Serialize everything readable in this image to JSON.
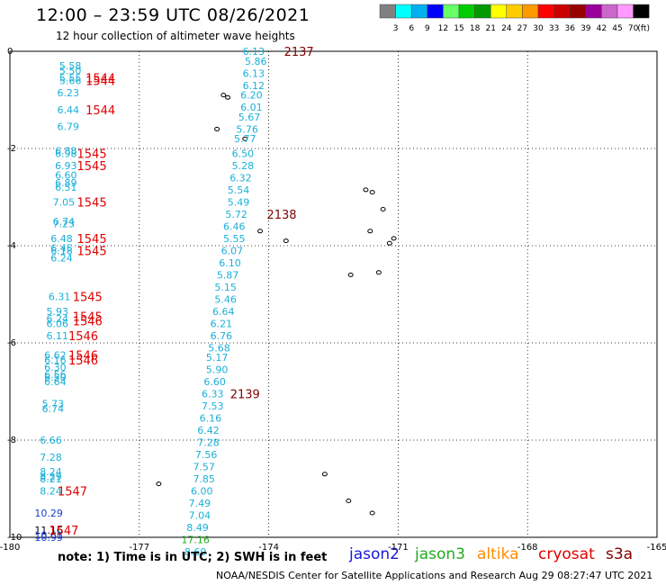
{
  "header": {
    "title": "12:00 – 23:59 UTC 08/26/2021",
    "subtitle": "12 hour collection of altimeter wave heights"
  },
  "legend": {
    "colors": [
      "#808080",
      "#00ffff",
      "#00b0f0",
      "#0000ff",
      "#66ff66",
      "#00cc00",
      "#009900",
      "#ffff00",
      "#ffcc00",
      "#ff9900",
      "#ff0000",
      "#cc0000",
      "#990000",
      "#990099",
      "#cc66cc",
      "#ff99ff",
      "#000000"
    ],
    "labels": [
      "3",
      "6",
      "9",
      "12",
      "15",
      "18",
      "21",
      "24",
      "27",
      "30",
      "33",
      "36",
      "39",
      "42",
      "45",
      "70",
      "(ft)"
    ]
  },
  "axes": {
    "x_labels": [
      "-180",
      "-177",
      "-174",
      "-171",
      "-168",
      "-165"
    ],
    "y_labels": [
      "0",
      "-2",
      "-4",
      "-6",
      "-8",
      "-10"
    ]
  },
  "footer": {
    "note": "note:  1) Time is in UTC;  2) SWH is in feet",
    "sat_jason2": "jason2",
    "sat_jason3": "jason3",
    "sat_altika": "altika",
    "sat_cryosat": "cryosat",
    "sat_s3a": "s3a",
    "credit": "NOAA/NESDIS Center for Satellite Applications and Research    Aug 29 08:27:47 UTC 2021"
  },
  "colors": {
    "swh_cyan": "#1ab0d8",
    "swh_blue": "#1a3cd8",
    "swh_green": "#22aa22",
    "time_red": "#e00000",
    "time_darkred": "#800000",
    "jason2": "#1a1ad8",
    "jason3": "#22aa22",
    "altika": "#ff8c00",
    "cryosat": "#e00000",
    "s3a": "#800000"
  },
  "track_left": {
    "swh": [
      {
        "lat": -0.3,
        "lon": -178.6,
        "v": "5.58"
      },
      {
        "lat": -0.4,
        "lon": -178.6,
        "v": "5.50"
      },
      {
        "lat": -0.55,
        "lon": -178.6,
        "v": "5.55"
      },
      {
        "lat": -0.6,
        "lon": -178.6,
        "v": "5.66"
      },
      {
        "lat": -0.85,
        "lon": -178.65,
        "v": "6.23"
      },
      {
        "lat": -1.2,
        "lon": -178.65,
        "v": "6.44"
      },
      {
        "lat": -1.55,
        "lon": -178.65,
        "v": "6.79"
      },
      {
        "lat": -2.05,
        "lon": -178.7,
        "v": "6.88"
      },
      {
        "lat": -2.1,
        "lon": -178.7,
        "v": "6.98"
      },
      {
        "lat": -2.35,
        "lon": -178.7,
        "v": "6.93"
      },
      {
        "lat": -2.55,
        "lon": -178.7,
        "v": "6.60"
      },
      {
        "lat": -2.7,
        "lon": -178.7,
        "v": "6.89"
      },
      {
        "lat": -2.8,
        "lon": -178.7,
        "v": "6.51"
      },
      {
        "lat": -3.1,
        "lon": -178.75,
        "v": "7.05"
      },
      {
        "lat": -3.5,
        "lon": -178.75,
        "v": "6.74"
      },
      {
        "lat": -3.55,
        "lon": -178.75,
        "v": "7.23"
      },
      {
        "lat": -3.85,
        "lon": -178.8,
        "v": "6.48"
      },
      {
        "lat": -4.05,
        "lon": -178.8,
        "v": "6.45"
      },
      {
        "lat": -4.1,
        "lon": -178.8,
        "v": "6.18"
      },
      {
        "lat": -4.25,
        "lon": -178.8,
        "v": "6.24"
      },
      {
        "lat": -5.05,
        "lon": -178.85,
        "v": "6.31"
      },
      {
        "lat": -5.35,
        "lon": -178.9,
        "v": "5.93"
      },
      {
        "lat": -5.5,
        "lon": -178.9,
        "v": "6.24"
      },
      {
        "lat": -5.6,
        "lon": -178.9,
        "v": "6.06"
      },
      {
        "lat": -5.85,
        "lon": -178.9,
        "v": "6.11"
      },
      {
        "lat": -6.25,
        "lon": -178.95,
        "v": "6.62"
      },
      {
        "lat": -6.35,
        "lon": -178.95,
        "v": "6.16"
      },
      {
        "lat": -6.5,
        "lon": -178.95,
        "v": "6.30"
      },
      {
        "lat": -6.65,
        "lon": -178.95,
        "v": "6.56"
      },
      {
        "lat": -6.7,
        "lon": -178.95,
        "v": "6.50"
      },
      {
        "lat": -6.8,
        "lon": -178.95,
        "v": "6.64"
      },
      {
        "lat": -7.25,
        "lon": -179.0,
        "v": "5.73"
      },
      {
        "lat": -7.35,
        "lon": -179.0,
        "v": "6.74"
      },
      {
        "lat": -8.0,
        "lon": -179.05,
        "v": "6.66"
      },
      {
        "lat": -8.35,
        "lon": -179.05,
        "v": "7.28"
      },
      {
        "lat": -8.65,
        "lon": -179.05,
        "v": "8.24"
      },
      {
        "lat": -8.75,
        "lon": -179.05,
        "v": "8.29"
      },
      {
        "lat": -8.8,
        "lon": -179.05,
        "v": "8.21"
      },
      {
        "lat": -9.05,
        "lon": -179.05,
        "v": "8.24"
      },
      {
        "lat": -9.5,
        "lon": -179.1,
        "v": "10.29",
        "c": "blue"
      },
      {
        "lat": -9.85,
        "lon": -179.1,
        "v": "11.16",
        "c": "black"
      },
      {
        "lat": -9.95,
        "lon": -179.1,
        "v": "10.61",
        "c": "blue"
      },
      {
        "lat": -10.0,
        "lon": -179.1,
        "v": "10.99",
        "c": "blue"
      }
    ],
    "times": [
      {
        "lat": -0.55,
        "lon": -177.9,
        "v": "1544"
      },
      {
        "lat": -0.6,
        "lon": -177.9,
        "v": "1544"
      },
      {
        "lat": -1.2,
        "lon": -177.9,
        "v": "1544"
      },
      {
        "lat": -2.1,
        "lon": -178.1,
        "v": "1545"
      },
      {
        "lat": -2.35,
        "lon": -178.1,
        "v": "1545"
      },
      {
        "lat": -3.1,
        "lon": -178.1,
        "v": "1545"
      },
      {
        "lat": -3.85,
        "lon": -178.1,
        "v": "1545"
      },
      {
        "lat": -4.1,
        "lon": -178.1,
        "v": "1545"
      },
      {
        "lat": -5.05,
        "lon": -178.2,
        "v": "1545"
      },
      {
        "lat": -5.45,
        "lon": -178.2,
        "v": "1545"
      },
      {
        "lat": -5.55,
        "lon": -178.2,
        "v": "1546"
      },
      {
        "lat": -5.85,
        "lon": -178.3,
        "v": "1546"
      },
      {
        "lat": -6.25,
        "lon": -178.3,
        "v": "1546"
      },
      {
        "lat": -6.35,
        "lon": -178.3,
        "v": "1546"
      },
      {
        "lat": -9.05,
        "lon": -178.55,
        "v": "1547"
      },
      {
        "lat": -9.85,
        "lon": -178.75,
        "v": "1547"
      }
    ]
  },
  "track_right": {
    "swh": [
      {
        "lat": 0.0,
        "lon": -174.35,
        "v": "6.13"
      },
      {
        "lat": -0.2,
        "lon": -174.3,
        "v": "5.86"
      },
      {
        "lat": -0.45,
        "lon": -174.35,
        "v": "6.13"
      },
      {
        "lat": -0.7,
        "lon": -174.35,
        "v": "6.12"
      },
      {
        "lat": -0.9,
        "lon": -174.4,
        "v": "6.20"
      },
      {
        "lat": -1.15,
        "lon": -174.4,
        "v": "6.01"
      },
      {
        "lat": -1.35,
        "lon": -174.45,
        "v": "5.67"
      },
      {
        "lat": -1.6,
        "lon": -174.5,
        "v": "5.76"
      },
      {
        "lat": -1.8,
        "lon": -174.55,
        "v": "5.77"
      },
      {
        "lat": -2.1,
        "lon": -174.6,
        "v": "6.50"
      },
      {
        "lat": -2.35,
        "lon": -174.6,
        "v": "5.28"
      },
      {
        "lat": -2.6,
        "lon": -174.65,
        "v": "6.32"
      },
      {
        "lat": -2.85,
        "lon": -174.7,
        "v": "5.54"
      },
      {
        "lat": -3.1,
        "lon": -174.7,
        "v": "5.49"
      },
      {
        "lat": -3.35,
        "lon": -174.75,
        "v": "5.72"
      },
      {
        "lat": -3.6,
        "lon": -174.8,
        "v": "6.46"
      },
      {
        "lat": -3.85,
        "lon": -174.8,
        "v": "5.55"
      },
      {
        "lat": -4.1,
        "lon": -174.85,
        "v": "6.07"
      },
      {
        "lat": -4.35,
        "lon": -174.9,
        "v": "6.10"
      },
      {
        "lat": -4.6,
        "lon": -174.95,
        "v": "5.87"
      },
      {
        "lat": -4.85,
        "lon": -175.0,
        "v": "5.15"
      },
      {
        "lat": -5.1,
        "lon": -175.0,
        "v": "5.46"
      },
      {
        "lat": -5.35,
        "lon": -175.05,
        "v": "6.64"
      },
      {
        "lat": -5.6,
        "lon": -175.1,
        "v": "6.21"
      },
      {
        "lat": -5.85,
        "lon": -175.1,
        "v": "6.76"
      },
      {
        "lat": -6.1,
        "lon": -175.15,
        "v": "5.68"
      },
      {
        "lat": -6.3,
        "lon": -175.2,
        "v": "5.17"
      },
      {
        "lat": -6.55,
        "lon": -175.2,
        "v": "5.90"
      },
      {
        "lat": -6.8,
        "lon": -175.25,
        "v": "6.60"
      },
      {
        "lat": -7.05,
        "lon": -175.3,
        "v": "6.33"
      },
      {
        "lat": -7.3,
        "lon": -175.3,
        "v": "7.53"
      },
      {
        "lat": -7.55,
        "lon": -175.35,
        "v": "6.16"
      },
      {
        "lat": -7.8,
        "lon": -175.4,
        "v": "6.42"
      },
      {
        "lat": -8.05,
        "lon": -175.4,
        "v": "7.28"
      },
      {
        "lat": -8.3,
        "lon": -175.45,
        "v": "7.56"
      },
      {
        "lat": -8.55,
        "lon": -175.5,
        "v": "7.57"
      },
      {
        "lat": -8.8,
        "lon": -175.5,
        "v": "7.85"
      },
      {
        "lat": -9.05,
        "lon": -175.55,
        "v": "6.00"
      },
      {
        "lat": -9.3,
        "lon": -175.6,
        "v": "7.49"
      },
      {
        "lat": -9.55,
        "lon": -175.6,
        "v": "7.04"
      },
      {
        "lat": -9.8,
        "lon": -175.65,
        "v": "8.49"
      },
      {
        "lat": -10.05,
        "lon": -175.7,
        "v": "17.16",
        "c": "green"
      },
      {
        "lat": -10.3,
        "lon": -175.7,
        "v": "8.60"
      }
    ],
    "times": [
      {
        "lat": 0.0,
        "lon": -173.3,
        "v": "2137"
      },
      {
        "lat": -3.35,
        "lon": -173.7,
        "v": "2138"
      },
      {
        "lat": -7.05,
        "lon": -174.55,
        "v": "2139"
      }
    ]
  },
  "islands": [
    {
      "lat": -0.9,
      "lon": -175.05
    },
    {
      "lat": -0.95,
      "lon": -174.95
    },
    {
      "lat": -1.6,
      "lon": -175.2
    },
    {
      "lat": -1.8,
      "lon": -174.55
    },
    {
      "lat": -2.85,
      "lon": -171.75
    },
    {
      "lat": -2.9,
      "lon": -171.6
    },
    {
      "lat": -3.25,
      "lon": -171.35
    },
    {
      "lat": -3.7,
      "lon": -171.65
    },
    {
      "lat": -3.7,
      "lon": -174.2
    },
    {
      "lat": -3.9,
      "lon": -173.6
    },
    {
      "lat": -3.85,
      "lon": -171.1
    },
    {
      "lat": -3.95,
      "lon": -171.2
    },
    {
      "lat": -4.6,
      "lon": -172.1
    },
    {
      "lat": -4.55,
      "lon": -171.45
    },
    {
      "lat": -8.7,
      "lon": -172.7
    },
    {
      "lat": -9.25,
      "lon": -172.15
    },
    {
      "lat": -9.5,
      "lon": -171.6
    },
    {
      "lat": -8.9,
      "lon": -176.55
    }
  ]
}
